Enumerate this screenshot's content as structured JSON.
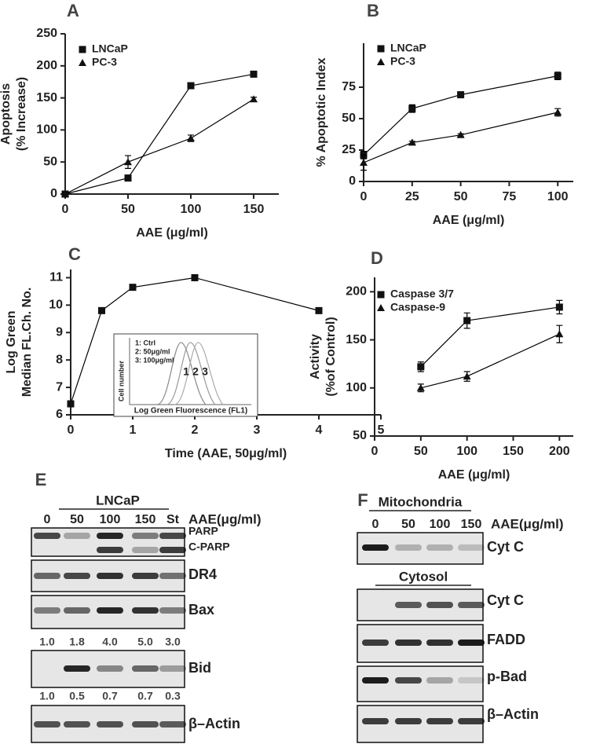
{
  "chart_data": [
    {
      "type": "line",
      "label": "A",
      "xlabel": "AAE  (μg/ml)",
      "ylabel": [
        "Apoptosis",
        "(% Increase)"
      ],
      "xlim": [
        0,
        170
      ],
      "xticks": [
        0,
        50,
        100,
        150
      ],
      "ylim": [
        0,
        250
      ],
      "yticks": [
        0,
        50,
        100,
        150,
        200,
        250
      ],
      "series": [
        {
          "name": "LNCaP",
          "color": "#000000",
          "marker": "square",
          "x": [
            0,
            50,
            100,
            150
          ],
          "values": [
            0,
            25,
            169,
            187
          ],
          "errors": [
            2,
            3,
            3,
            3
          ]
        },
        {
          "name": "PC-3",
          "color": "#000000",
          "marker": "triangle",
          "x": [
            0,
            50,
            100,
            150
          ],
          "values": [
            0,
            50,
            87,
            148
          ],
          "errors": [
            2,
            10,
            5,
            3
          ]
        }
      ]
    },
    {
      "type": "line",
      "label": "B",
      "xlabel": "AAE (μg/ml)",
      "ylabel": [
        "% Apoptotic Index"
      ],
      "xlim": [
        0,
        108
      ],
      "xticks": [
        0,
        25,
        50,
        75,
        100
      ],
      "ylim": [
        0,
        110
      ],
      "yticks": [
        0,
        25,
        50,
        75
      ],
      "series": [
        {
          "name": "LNCaP",
          "color": "#000000",
          "marker": "square",
          "x": [
            0,
            25,
            50,
            100
          ],
          "values": [
            21,
            58,
            69,
            84
          ],
          "errors": [
            3,
            3,
            1,
            3
          ]
        },
        {
          "name": "PC-3",
          "color": "#000000",
          "marker": "triangle",
          "x": [
            0,
            25,
            50,
            100
          ],
          "values": [
            15,
            31,
            37,
            55
          ],
          "errors": [
            6,
            1,
            1,
            3
          ]
        }
      ]
    },
    {
      "type": "line",
      "label": "C",
      "xlabel": "Time (AAE, 50μg/ml)",
      "ylabel": [
        "Log Green",
        "Median FL.Ch. No."
      ],
      "xlim": [
        0,
        5
      ],
      "xticks": [
        0,
        1,
        2,
        3,
        4,
        5
      ],
      "ylim": [
        6,
        11.3
      ],
      "yticks": [
        6,
        7,
        8,
        9,
        10,
        11
      ],
      "series": [
        {
          "color": "#000000",
          "marker": "square",
          "x": [
            0,
            0.5,
            1,
            2,
            4
          ],
          "values": [
            6.4,
            9.8,
            10.65,
            11.0,
            9.8
          ]
        }
      ],
      "inset": {
        "legend": [
          "1: Ctrl",
          "2: 50μg/ml",
          "3: 100μg/ml"
        ],
        "ylabel": "Cell number",
        "xlabel": "Log Green Fluorescence (FL1)",
        "peaks": [
          "1",
          "2",
          "3"
        ]
      }
    },
    {
      "type": "line",
      "label": "D",
      "xlabel": "AAE (μg/ml)",
      "ylabel": [
        "Activity",
        "(%of Control)"
      ],
      "xlim": [
        0,
        215
      ],
      "xticks": [
        0,
        50,
        100,
        150,
        200
      ],
      "ylim": [
        50,
        215
      ],
      "yticks": [
        50,
        100,
        150,
        200
      ],
      "series": [
        {
          "name": "Caspase 3/7",
          "color": "#000000",
          "marker": "square",
          "x": [
            50,
            100,
            200
          ],
          "values": [
            122,
            170,
            184
          ],
          "errors": [
            5,
            8,
            7
          ]
        },
        {
          "name": "Caspase-9",
          "color": "#000000",
          "marker": "triangle",
          "x": [
            50,
            100,
            200
          ],
          "values": [
            100,
            112,
            156
          ],
          "errors": [
            4,
            5,
            9
          ]
        }
      ]
    }
  ],
  "blots": [
    {
      "label": "E",
      "group": "LNCaP",
      "lanes": [
        "0",
        "50",
        "100",
        "150",
        "St"
      ],
      "unit": "AAE(μg/ml)",
      "rows": [
        {
          "labels": [
            "PARP",
            "C-PARP"
          ]
        },
        {
          "labels": [
            "DR4"
          ]
        },
        {
          "labels": [
            "Bax"
          ]
        },
        {
          "quant": [
            "1.0",
            "1.8",
            "4.0",
            "5.0",
            "3.0"
          ]
        },
        {
          "labels": [
            "Bid"
          ]
        },
        {
          "quant": [
            "1.0",
            "0.5",
            "0.7",
            "0.7",
            "0.3"
          ]
        },
        {
          "labels": [
            "β–Actin"
          ]
        }
      ]
    },
    {
      "label": "F",
      "group": "Mitochondria",
      "lanes": [
        "0",
        "50",
        "100",
        "150"
      ],
      "unit": "AAE(μg/ml)",
      "rows": [
        {
          "labels": [
            "Cyt C"
          ]
        },
        {
          "group": "Cytosol"
        },
        {
          "labels": [
            "Cyt C"
          ]
        },
        {
          "labels": [
            "FADD"
          ]
        },
        {
          "labels": [
            "p-Bad"
          ]
        },
        {
          "labels": [
            "β–Actin"
          ]
        }
      ]
    }
  ]
}
